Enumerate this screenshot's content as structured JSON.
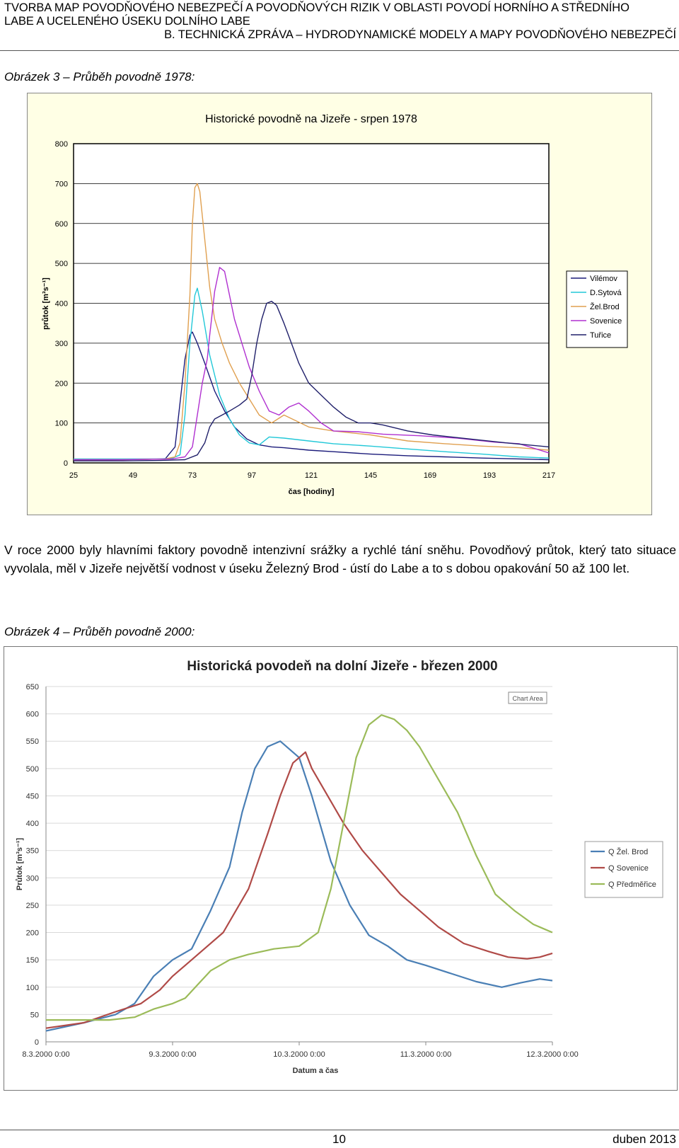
{
  "header": {
    "line1": "TVORBA MAP POVODŇOVÉHO NEBEZPEČÍ A POVODŇOVÝCH RIZIK V OBLASTI POVODÍ HORNÍHO A STŘEDNÍHO",
    "line2": "LABE A UCELENÉHO ÚSEKU DOLNÍHO LABE",
    "line3": "B. TECHNICKÁ ZPRÁVA – HYDRODYNAMICKÉ MODELY A MAPY POVODŇOVÉHO NEBEZPEČÍ"
  },
  "caption1": "Obrázek 3 – Průběh povodně 1978:",
  "paragraph": "V roce 2000 byly hlavními faktory povodně intenzivní srážky a rychlé tání sněhu. Povodňový průtok, který tato situace vyvolala, měl v Jizeře největší vodnost v úseku Železný Brod - ústí do Labe a to s dobou opakování 50 až 100 let.",
  "caption2": "Obrázek 4 – Průběh povodně 2000:",
  "footer": {
    "page": "10",
    "date": "duben 2013"
  },
  "chart_data": [
    {
      "type": "line",
      "title": "Historické povodně na Jizeře - srpen 1978",
      "xlabel": "čas  [hodiny]",
      "ylabel": "průtok [m³s⁻¹]",
      "xlim": [
        25,
        217
      ],
      "ylim": [
        0,
        800
      ],
      "xticks": [
        "25",
        "49",
        "73",
        "97",
        "121",
        "145",
        "169",
        "193",
        "217"
      ],
      "yticks": [
        "0",
        "100",
        "200",
        "300",
        "400",
        "500",
        "600",
        "700",
        "800"
      ],
      "grid": true,
      "legend_position": "right",
      "colors": {
        "plot_bg": "#ffffff",
        "area_bg": "#ffffe5"
      },
      "series": [
        {
          "name": "Vilémov",
          "color": "#1b1b7a",
          "x": [
            25,
            40,
            55,
            62,
            66,
            68,
            70,
            72,
            73,
            75,
            78,
            82,
            86,
            90,
            95,
            100,
            105,
            110,
            120,
            130,
            145,
            160,
            175,
            190,
            205,
            217
          ],
          "y": [
            8,
            8,
            9,
            10,
            40,
            150,
            260,
            320,
            328,
            300,
            250,
            180,
            130,
            90,
            60,
            45,
            40,
            38,
            32,
            28,
            22,
            18,
            15,
            12,
            10,
            8
          ]
        },
        {
          "name": "D.Sytová",
          "color": "#22c8d8",
          "x": [
            25,
            45,
            60,
            65,
            68,
            70,
            72,
            74,
            75,
            77,
            80,
            84,
            88,
            92,
            96,
            100,
            104,
            110,
            120,
            130,
            145,
            160,
            175,
            190,
            205,
            217
          ],
          "y": [
            10,
            10,
            10,
            12,
            20,
            120,
            300,
            420,
            438,
            380,
            270,
            170,
            110,
            70,
            50,
            45,
            65,
            62,
            55,
            48,
            42,
            35,
            28,
            22,
            15,
            12
          ]
        },
        {
          "name": "Žel.Brod",
          "color": "#e0a050",
          "x": [
            25,
            45,
            62,
            66,
            68,
            70,
            72,
            73,
            74,
            75,
            76,
            78,
            80,
            82,
            85,
            88,
            92,
            96,
            100,
            105,
            110,
            120,
            130,
            145,
            160,
            175,
            190,
            205,
            217
          ],
          "y": [
            8,
            8,
            10,
            15,
            50,
            200,
            420,
            600,
            690,
            700,
            680,
            560,
            440,
            360,
            300,
            250,
            200,
            160,
            120,
            100,
            120,
            90,
            80,
            70,
            55,
            48,
            42,
            38,
            32
          ]
        },
        {
          "name": "Sovenice",
          "color": "#b030d0",
          "x": [
            25,
            45,
            65,
            70,
            73,
            75,
            77,
            79,
            80,
            82,
            84,
            86,
            88,
            90,
            93,
            96,
            100,
            104,
            108,
            112,
            116,
            120,
            125,
            130,
            140,
            150,
            165,
            180,
            195,
            205,
            217
          ],
          "y": [
            8,
            8,
            10,
            15,
            40,
            120,
            200,
            260,
            320,
            430,
            490,
            480,
            420,
            360,
            300,
            240,
            180,
            130,
            120,
            140,
            150,
            130,
            100,
            80,
            78,
            72,
            68,
            62,
            52,
            48,
            25
          ]
        },
        {
          "name": "Tuřice",
          "color": "#20206a",
          "x": [
            25,
            45,
            60,
            70,
            75,
            78,
            80,
            82,
            85,
            88,
            92,
            95,
            97,
            99,
            101,
            103,
            105,
            107,
            110,
            113,
            116,
            120,
            125,
            130,
            135,
            140,
            145,
            150,
            160,
            170,
            185,
            200,
            217
          ],
          "y": [
            5,
            5,
            6,
            8,
            20,
            50,
            90,
            110,
            120,
            130,
            145,
            160,
            220,
            300,
            360,
            400,
            405,
            395,
            350,
            300,
            250,
            200,
            170,
            140,
            115,
            100,
            100,
            95,
            80,
            70,
            60,
            50,
            40
          ]
        }
      ]
    },
    {
      "type": "line",
      "title": "Historická povodeň na dolní Jizeře - březen 2000",
      "xlabel": "Datum a čas",
      "ylabel": "Průtok [m³s⁻¹]",
      "annotation": "Chart Area",
      "xlim": [
        "8.3.2000 0:00",
        "12.3.2000 0:00"
      ],
      "x_unit": "days",
      "ylim": [
        0,
        650
      ],
      "xticks": [
        "8.3.2000 0:00",
        "9.3.2000 0:00",
        "10.3.2000 0:00",
        "11.3.2000 0:00",
        "12.3.2000 0:00"
      ],
      "yticks": [
        "0",
        "50",
        "100",
        "150",
        "200",
        "250",
        "300",
        "350",
        "400",
        "450",
        "500",
        "550",
        "600",
        "650"
      ],
      "grid": true,
      "legend_position": "right",
      "series": [
        {
          "name": "Q  Žel. Brod",
          "color": "#4a7fb5",
          "x": [
            0,
            0.3,
            0.55,
            0.7,
            0.85,
            1.0,
            1.15,
            1.3,
            1.45,
            1.55,
            1.65,
            1.75,
            1.85,
            2.0,
            2.1,
            2.25,
            2.4,
            2.55,
            2.7,
            2.85,
            3.0,
            3.2,
            3.4,
            3.6,
            3.75,
            3.9,
            4.0
          ],
          "y": [
            20,
            35,
            50,
            70,
            120,
            150,
            170,
            240,
            320,
            420,
            500,
            540,
            550,
            520,
            450,
            330,
            250,
            195,
            175,
            150,
            140,
            125,
            110,
            100,
            108,
            115,
            112
          ]
        },
        {
          "name": "Q Sovenice",
          "color": "#b04a47",
          "x": [
            0,
            0.3,
            0.55,
            0.75,
            0.9,
            1.0,
            1.1,
            1.25,
            1.4,
            1.6,
            1.75,
            1.85,
            1.95,
            2.05,
            2.1,
            2.2,
            2.35,
            2.5,
            2.65,
            2.8,
            2.95,
            3.1,
            3.3,
            3.5,
            3.65,
            3.8,
            3.9,
            4.0
          ],
          "y": [
            25,
            35,
            55,
            70,
            95,
            120,
            140,
            170,
            200,
            280,
            380,
            450,
            510,
            530,
            500,
            460,
            400,
            350,
            310,
            270,
            240,
            210,
            180,
            165,
            155,
            152,
            155,
            162
          ]
        },
        {
          "name": "Q Předměřice",
          "color": "#9bbb59",
          "x": [
            0,
            0.5,
            0.7,
            0.85,
            1.0,
            1.1,
            1.2,
            1.3,
            1.45,
            1.6,
            1.8,
            2.0,
            2.15,
            2.25,
            2.35,
            2.45,
            2.55,
            2.65,
            2.75,
            2.85,
            2.95,
            3.1,
            3.25,
            3.4,
            3.55,
            3.7,
            3.85,
            4.0
          ],
          "y": [
            40,
            40,
            45,
            60,
            70,
            80,
            105,
            130,
            150,
            160,
            170,
            175,
            200,
            280,
            400,
            520,
            580,
            598,
            590,
            570,
            540,
            480,
            420,
            340,
            270,
            240,
            215,
            200
          ]
        }
      ]
    }
  ]
}
